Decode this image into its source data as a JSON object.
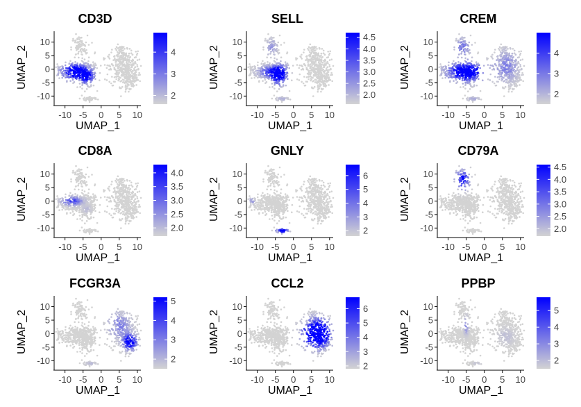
{
  "figure": {
    "colors": {
      "low": "#d3d3d3",
      "high": "#0000ff",
      "axis": "#000000",
      "tick_text": "#444444"
    }
  },
  "chart_data": [
    {
      "type": "scatter",
      "title": "CD3D",
      "xlabel": "UMAP_1",
      "ylabel": "UMAP_2",
      "x_ticks": [
        -10,
        -5,
        0,
        5,
        10
      ],
      "y_ticks": [
        10,
        5,
        0,
        -5,
        -10
      ],
      "xlim": [
        -13,
        11
      ],
      "ylim": [
        -13,
        14
      ],
      "legend": {
        "min": 1.6,
        "max": 4.9,
        "ticks": [
          2,
          3,
          4
        ]
      },
      "hotspots": [
        {
          "x": -7,
          "y": -1,
          "sx": 2.4,
          "sy": 1.8,
          "w": 120
        },
        {
          "x": -4,
          "y": -3,
          "sx": 1.3,
          "sy": 1.5,
          "w": 80
        }
      ]
    },
    {
      "type": "scatter",
      "title": "SELL",
      "xlabel": "UMAP_1",
      "ylabel": "UMAP_2",
      "x_ticks": [
        -10,
        -5,
        0,
        5,
        10
      ],
      "y_ticks": [
        10,
        5,
        0,
        -5,
        -10
      ],
      "xlim": [
        -13,
        11
      ],
      "ylim": [
        -13,
        14
      ],
      "legend": {
        "min": 1.6,
        "max": 4.7,
        "ticks": [
          2.0,
          2.5,
          3.0,
          3.5,
          4.0,
          4.5
        ]
      },
      "hotspots": [
        {
          "x": -4,
          "y": -2,
          "sx": 1.5,
          "sy": 2.2,
          "w": 120
        },
        {
          "x": -7,
          "y": -1,
          "sx": 2.0,
          "sy": 1.3,
          "w": 50
        },
        {
          "x": -6,
          "y": 8,
          "sx": 1.0,
          "sy": 2.0,
          "w": 25
        },
        {
          "x": -3,
          "y": -11,
          "sx": 1.2,
          "sy": 0.5,
          "w": 15
        }
      ]
    },
    {
      "type": "scatter",
      "title": "CREM",
      "xlabel": "UMAP_1",
      "ylabel": "UMAP_2",
      "x_ticks": [
        -10,
        -5,
        0,
        5,
        10
      ],
      "y_ticks": [
        10,
        5,
        0,
        -5,
        -10
      ],
      "xlim": [
        -13,
        11
      ],
      "ylim": [
        -13,
        14
      ],
      "legend": {
        "min": 1.5,
        "max": 5.0,
        "ticks": [
          2,
          3,
          4
        ]
      },
      "hotspots": [
        {
          "x": -5,
          "y": -1,
          "sx": 3.2,
          "sy": 2.2,
          "w": 120
        },
        {
          "x": -6,
          "y": 8,
          "sx": 1.3,
          "sy": 2.2,
          "w": 40
        },
        {
          "x": -3,
          "y": -11,
          "sx": 1.2,
          "sy": 0.5,
          "w": 15
        },
        {
          "x": 6,
          "y": 1,
          "sx": 2.2,
          "sy": 3.5,
          "w": 35
        }
      ]
    },
    {
      "type": "scatter",
      "title": "CD8A",
      "xlabel": "UMAP_1",
      "ylabel": "UMAP_2",
      "x_ticks": [
        -10,
        -5,
        0,
        5,
        10
      ],
      "y_ticks": [
        10,
        5,
        0,
        -5,
        -10
      ],
      "xlim": [
        -13,
        11
      ],
      "ylim": [
        -13,
        14
      ],
      "legend": {
        "min": 1.7,
        "max": 4.3,
        "ticks": [
          2.0,
          2.5,
          3.0,
          3.5,
          4.0
        ]
      },
      "hotspots": [
        {
          "x": -8,
          "y": 0,
          "sx": 1.8,
          "sy": 1.0,
          "w": 60
        },
        {
          "x": -4,
          "y": -3,
          "sx": 0.8,
          "sy": 1.0,
          "w": 10
        }
      ]
    },
    {
      "type": "scatter",
      "title": "GNLY",
      "xlabel": "UMAP_1",
      "ylabel": "UMAP_2",
      "x_ticks": [
        -10,
        -5,
        0,
        5,
        10
      ],
      "y_ticks": [
        10,
        5,
        0,
        -5,
        -10
      ],
      "xlim": [
        -13,
        11
      ],
      "ylim": [
        -13,
        14
      ],
      "legend": {
        "min": 1.6,
        "max": 6.8,
        "ticks": [
          2,
          3,
          4,
          5,
          6
        ]
      },
      "hotspots": [
        {
          "x": -3,
          "y": -11,
          "sx": 1.1,
          "sy": 0.5,
          "w": 110
        },
        {
          "x": -11.5,
          "y": 0,
          "sx": 0.5,
          "sy": 0.7,
          "w": 25
        }
      ]
    },
    {
      "type": "scatter",
      "title": "CD79A",
      "xlabel": "UMAP_1",
      "ylabel": "UMAP_2",
      "x_ticks": [
        -10,
        -5,
        0,
        5,
        10
      ],
      "y_ticks": [
        10,
        5,
        0,
        -5,
        -10
      ],
      "xlim": [
        -13,
        11
      ],
      "ylim": [
        -13,
        14
      ],
      "legend": {
        "min": 1.7,
        "max": 4.6,
        "ticks": [
          2.0,
          2.5,
          3.0,
          3.5,
          4.0,
          4.5
        ]
      },
      "hotspots": [
        {
          "x": -6,
          "y": 8,
          "sx": 1.2,
          "sy": 2.2,
          "w": 90
        }
      ]
    },
    {
      "type": "scatter",
      "title": "FCGR3A",
      "xlabel": "UMAP_1",
      "ylabel": "UMAP_2",
      "x_ticks": [
        -10,
        -5,
        0,
        5,
        10
      ],
      "y_ticks": [
        10,
        5,
        0,
        -5,
        -10
      ],
      "xlim": [
        -13,
        11
      ],
      "ylim": [
        -13,
        14
      ],
      "legend": {
        "min": 1.5,
        "max": 5.2,
        "ticks": [
          2,
          3,
          4,
          5
        ]
      },
      "hotspots": [
        {
          "x": 8,
          "y": -3,
          "sx": 1.2,
          "sy": 1.8,
          "w": 110
        },
        {
          "x": 5,
          "y": 3,
          "sx": 2.0,
          "sy": 3.0,
          "w": 35
        },
        {
          "x": -3,
          "y": -11,
          "sx": 1.0,
          "sy": 0.5,
          "w": 10
        }
      ]
    },
    {
      "type": "scatter",
      "title": "CCL2",
      "xlabel": "UMAP_1",
      "ylabel": "UMAP_2",
      "x_ticks": [
        -10,
        -5,
        0,
        5,
        10
      ],
      "y_ticks": [
        10,
        5,
        0,
        -5,
        -10
      ],
      "xlim": [
        -13,
        11
      ],
      "ylim": [
        -13,
        14
      ],
      "legend": {
        "min": 1.8,
        "max": 6.8,
        "ticks": [
          2,
          3,
          4,
          5,
          6
        ]
      },
      "hotspots": [
        {
          "x": 6.5,
          "y": 0,
          "sx": 2.3,
          "sy": 3.0,
          "w": 190
        }
      ]
    },
    {
      "type": "scatter",
      "title": "PPBP",
      "xlabel": "UMAP_1",
      "ylabel": "UMAP_2",
      "x_ticks": [
        -10,
        -5,
        0,
        5,
        10
      ],
      "y_ticks": [
        10,
        5,
        0,
        -5,
        -10
      ],
      "xlim": [
        -13,
        11
      ],
      "ylim": [
        -13,
        14
      ],
      "legend": {
        "min": 1.5,
        "max": 5.8,
        "ticks": [
          2,
          3,
          4,
          5
        ]
      },
      "hotspots": [
        {
          "x": -5,
          "y": 3,
          "sx": 0.4,
          "sy": 2.0,
          "w": 30
        },
        {
          "x": 6,
          "y": -1,
          "sx": 1.5,
          "sy": 2.0,
          "w": 8
        },
        {
          "x": -2,
          "y": -11,
          "sx": 0.8,
          "sy": 0.4,
          "w": 6
        }
      ]
    }
  ]
}
